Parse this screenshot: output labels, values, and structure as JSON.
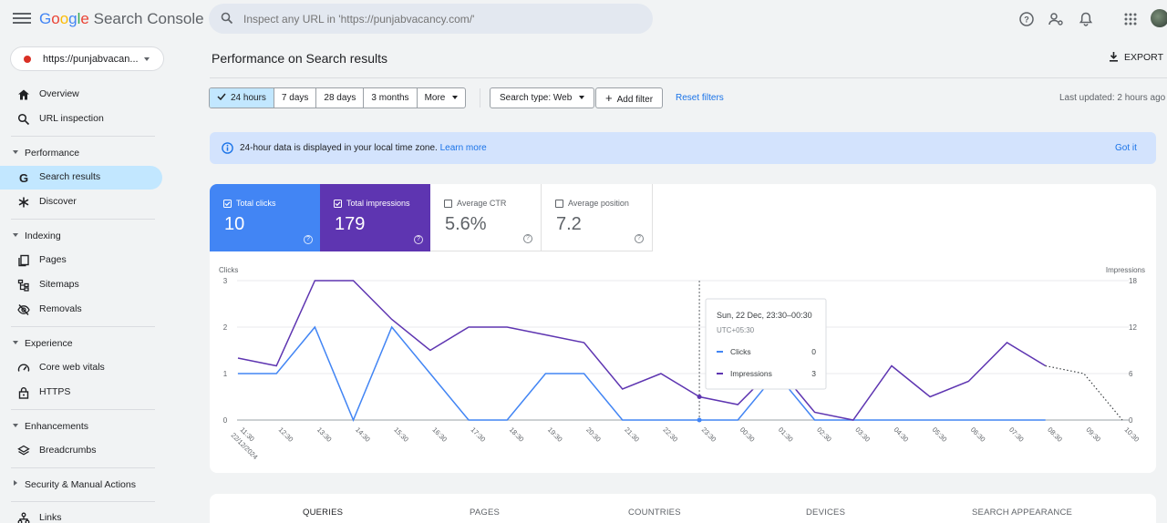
{
  "header": {
    "brand_prefix": "Google",
    "brand_suffix": "Search Console",
    "search_placeholder": "Inspect any URL in 'https://punjabvacancy.com/'"
  },
  "property": {
    "label": "https://punjabvacan..."
  },
  "sidebar": {
    "overview": "Overview",
    "url_inspection": "URL inspection",
    "performance": "Performance",
    "search_results": "Search results",
    "discover": "Discover",
    "indexing": "Indexing",
    "pages": "Pages",
    "sitemaps": "Sitemaps",
    "removals": "Removals",
    "experience": "Experience",
    "core_web_vitals": "Core web vitals",
    "https": "HTTPS",
    "enhancements": "Enhancements",
    "breadcrumbs": "Breadcrumbs",
    "security": "Security & Manual Actions",
    "links": "Links"
  },
  "main": {
    "title": "Performance on Search results",
    "export": "EXPORT",
    "ranges": [
      "24 hours",
      "7 days",
      "28 days",
      "3 months",
      "More"
    ],
    "selected_range": "24 hours",
    "search_type": "Search type: Web",
    "add_filter": "Add filter",
    "reset_filters": "Reset filters",
    "last_updated": "Last updated: 2 hours ago",
    "banner_text": "24-hour data is displayed in your local time zone.",
    "banner_link": "Learn more",
    "got_it": "Got it"
  },
  "metrics": {
    "clicks_label": "Total clicks",
    "clicks_value": "10",
    "impressions_label": "Total impressions",
    "impressions_value": "179",
    "ctr_label": "Average CTR",
    "ctr_value": "5.6%",
    "position_label": "Average position",
    "position_value": "7.2"
  },
  "colors": {
    "clicks": "#4285f4",
    "impressions": "#5e35b1",
    "accent_blue": "#1a73e8"
  },
  "chart_data": {
    "type": "line",
    "x": [
      "11:30",
      "12:30",
      "13:30",
      "14:30",
      "15:30",
      "16:30",
      "17:30",
      "18:30",
      "19:30",
      "20:30",
      "21:30",
      "22:30",
      "23:30",
      "00:30",
      "01:30",
      "02:30",
      "03:30",
      "04:30",
      "05:30",
      "06:30",
      "07:30",
      "08:30",
      "09:30",
      "10:30"
    ],
    "x_first_date": "22/12/2024",
    "y_left_label": "Clicks",
    "y_right_label": "Impressions",
    "ylim_left": [
      0,
      3
    ],
    "ylim_right": [
      0,
      18
    ],
    "y_left_ticks": [
      "0",
      "1",
      "2",
      "3"
    ],
    "y_right_ticks": [
      "0",
      "6",
      "12",
      "18"
    ],
    "series": [
      {
        "name": "Clicks",
        "axis": "left",
        "values": [
          1,
          1,
          2,
          0,
          2,
          1,
          0,
          0,
          1,
          1,
          0,
          0,
          0,
          0,
          1,
          0,
          0,
          0,
          0,
          0,
          0,
          0,
          null,
          null
        ]
      },
      {
        "name": "Impressions",
        "axis": "right",
        "values": [
          8,
          7,
          18,
          18,
          13,
          9,
          12,
          12,
          11,
          10,
          4,
          6,
          3,
          2,
          7,
          1,
          0,
          7,
          3,
          5,
          10,
          7,
          6,
          0
        ]
      }
    ],
    "partial_from_index": 21,
    "grid": true,
    "tooltip": {
      "title": "Sun, 22 Dec, 23:30–00:30",
      "subtitle": "UTC+05:30",
      "rows": [
        {
          "name": "Clicks",
          "value": "0"
        },
        {
          "name": "Impressions",
          "value": "3"
        }
      ],
      "index": 12
    }
  },
  "tabs": [
    "QUERIES",
    "PAGES",
    "COUNTRIES",
    "DEVICES",
    "SEARCH APPEARANCE"
  ]
}
